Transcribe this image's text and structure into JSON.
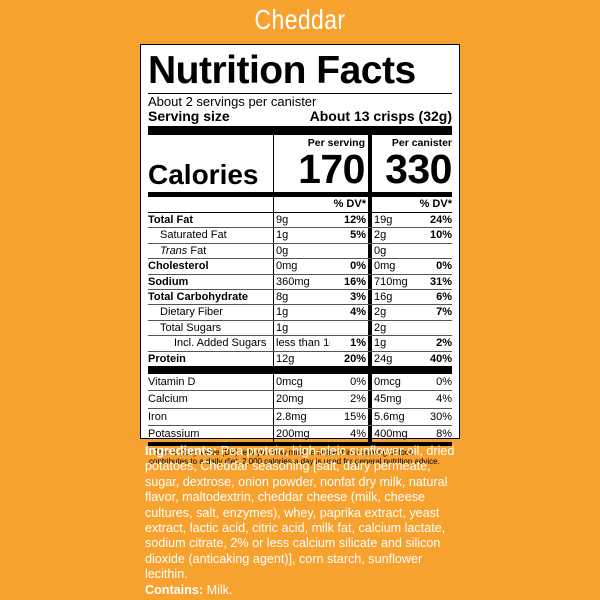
{
  "flavor": "Cheddar",
  "label": {
    "title": "Nutrition Facts",
    "servings_per": "About 2 servings per canister",
    "serving_size_label": "Serving size",
    "serving_size_value": "About 13 crisps (32g)",
    "calories_label": "Calories",
    "col1_head": "Per serving",
    "col2_head": "Per canister",
    "calories_1": "170",
    "calories_2": "330",
    "dv_head": "% DV*",
    "nutrients": [
      {
        "name": "Total Fat",
        "a1": "9g",
        "p1": "12%",
        "a2": "19g",
        "p2": "24%"
      },
      {
        "name": "Saturated Fat",
        "a1": "1g",
        "p1": "5%",
        "a2": "2g",
        "p2": "10%"
      },
      {
        "name": "Trans",
        "name_suffix": " Fat",
        "a1": "0g",
        "p1": "",
        "a2": "0g",
        "p2": ""
      },
      {
        "name": "Cholesterol",
        "a1": "0mg",
        "p1": "0%",
        "a2": "0mg",
        "p2": "0%"
      },
      {
        "name": "Sodium",
        "a1": "360mg",
        "p1": "16%",
        "a2": "710mg",
        "p2": "31%"
      },
      {
        "name": "Total Carbohydrate",
        "a1": "8g",
        "p1": "3%",
        "a2": "16g",
        "p2": "6%"
      },
      {
        "name": "Dietary Fiber",
        "a1": "1g",
        "p1": "4%",
        "a2": "2g",
        "p2": "7%"
      },
      {
        "name": "Total Sugars",
        "a1": "1g",
        "p1": "",
        "a2": "2g",
        "p2": ""
      },
      {
        "name": "Incl. Added Sugars",
        "a1": "less than 1g",
        "p1": "1%",
        "a2": "1g",
        "p2": "2%"
      },
      {
        "name": "Protein",
        "a1": "12g",
        "p1": "20%",
        "a2": "24g",
        "p2": "40%"
      }
    ],
    "minerals": [
      {
        "name": "Vitamin D",
        "a1": "0mcg",
        "p1": "0%",
        "a2": "0mcg",
        "p2": "0%"
      },
      {
        "name": "Calcium",
        "a1": "20mg",
        "p1": "2%",
        "a2": "45mg",
        "p2": "4%"
      },
      {
        "name": "Iron",
        "a1": "2.8mg",
        "p1": "15%",
        "a2": "5.6mg",
        "p2": "30%"
      },
      {
        "name": "Potassium",
        "a1": "200mg",
        "p1": "4%",
        "a2": "400mg",
        "p2": "8%"
      }
    ],
    "footnote": "* The % Daily Value (DV) tells you how much a nutrient in a serving of food contributes to a daily diet. 2,000 calories a day is used for general nutrition advice."
  },
  "ingredients": {
    "label": "Ingredients:",
    "text": " Pea protein, high-oleic sunflower oil, dried potatoes, Cheddar seasoning [salt, dairy permeate, sugar, dextrose, onion powder, nonfat dry milk, natural flavor, maltodextrin, cheddar cheese (milk, cheese cultures, salt, enzymes), whey, paprika extract, yeast extract, lactic acid, citric acid, milk fat, calcium lactate, sodium citrate, 2% or less calcium silicate and silicon dioxide (anticaking agent)], corn starch, sunflower lecithin.",
    "contains_label": "Contains:",
    "contains_text": " Milk."
  },
  "colors": {
    "background": "#F7A22E",
    "panel": "#FFFFFF",
    "text": "#000000"
  }
}
